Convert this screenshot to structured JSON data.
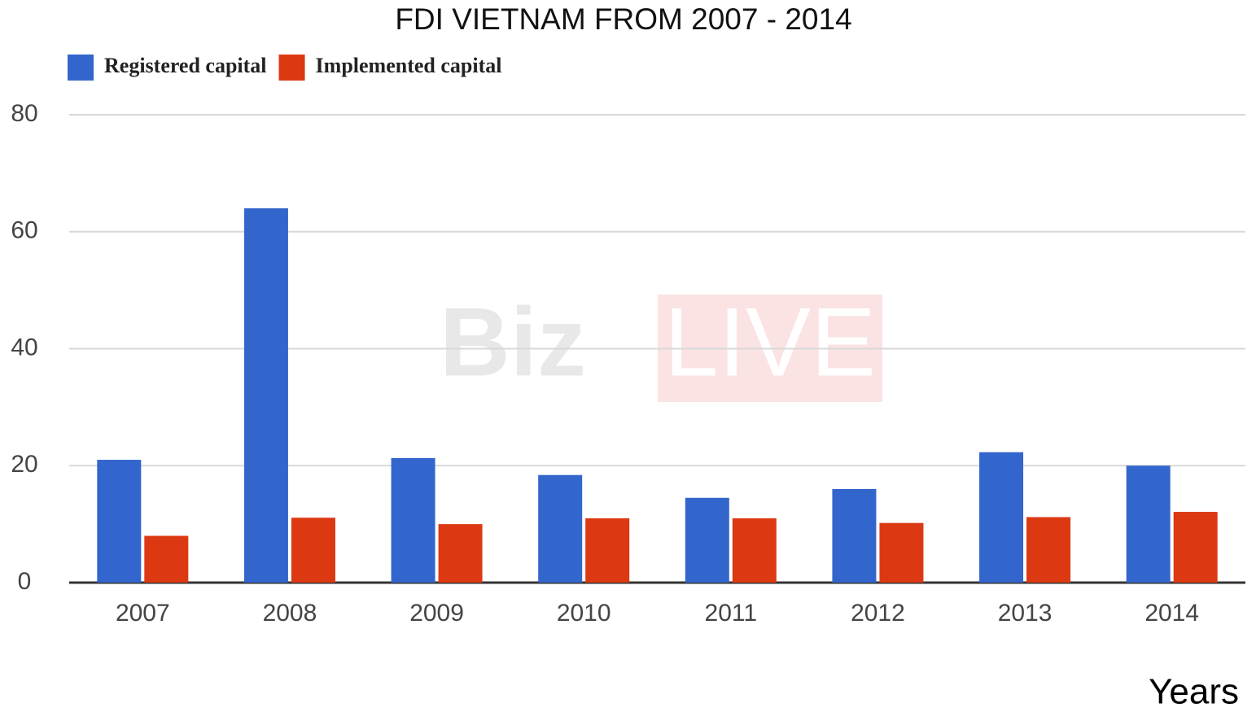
{
  "chart_data": {
    "type": "bar",
    "title": "FDI VIETNAM FROM 2007 - 2014",
    "x_label": "Years",
    "watermark": [
      "Biz",
      "LIVE"
    ],
    "categories": [
      "2007",
      "2008",
      "2009",
      "2010",
      "2011",
      "2012",
      "2013",
      "2014"
    ],
    "series": [
      {
        "name": "Registered capital",
        "color": "#3366cc",
        "values": [
          21,
          64,
          21.3,
          18.4,
          14.5,
          16,
          22.3,
          20
        ]
      },
      {
        "name": "Implemented capital",
        "color": "#dc3912",
        "values": [
          8,
          11.1,
          10,
          11,
          11,
          10.2,
          11.2,
          12.1
        ]
      }
    ],
    "ylim": [
      0,
      80
    ],
    "yticks": [
      0,
      20,
      40,
      60,
      80
    ],
    "grid": true,
    "legend": "top"
  }
}
